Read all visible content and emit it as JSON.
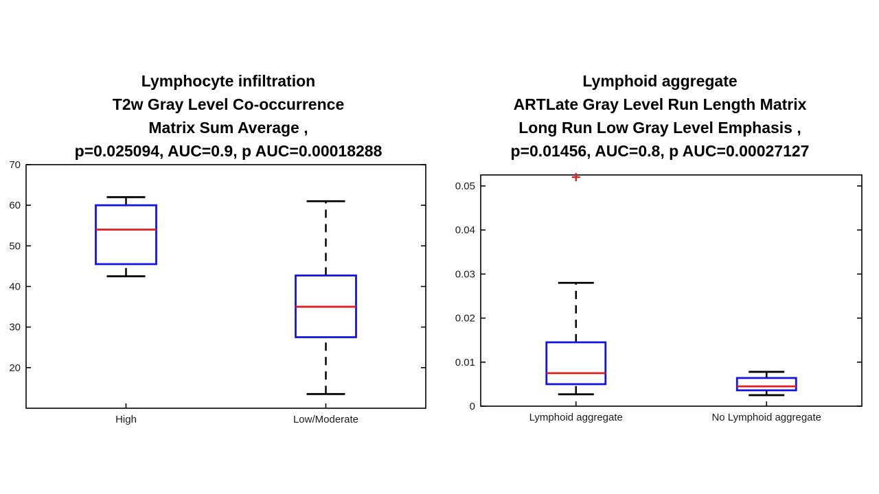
{
  "chart_data": [
    {
      "type": "boxplot",
      "title": "Lymphocyte infiltration\nT2w Gray Level Co-occurrence\nMatrix Sum Average ,\np=0.025094, AUC=0.9, p AUC=0.00018288",
      "p_value": "0.025094",
      "auc": "0.9",
      "p_auc": "0.00018288",
      "categories": [
        "High",
        "Low/Moderate"
      ],
      "ylim": [
        10,
        70
      ],
      "yticks": [
        20,
        30,
        40,
        50,
        60,
        70
      ],
      "ytick_labels": [
        "20",
        "30",
        "40",
        "50",
        "60",
        "70"
      ],
      "series": [
        {
          "name": "High",
          "whisker_low": 42.5,
          "q1": 45.5,
          "median": 54,
          "q3": 60,
          "whisker_high": 62,
          "outliers": []
        },
        {
          "name": "Low/Moderate",
          "whisker_low": 13.5,
          "q1": 27.5,
          "median": 35,
          "q3": 42.7,
          "whisker_high": 61,
          "outliers": []
        }
      ],
      "colors": {
        "box": "#1414E0",
        "median": "#E01F1F",
        "whisker": "#000000",
        "outlier": "#E01F1F",
        "axis": "#000000"
      }
    },
    {
      "type": "boxplot",
      "title": "Lymphoid aggregate\nARTLate Gray Level Run Length Matrix\nLong Run Low Gray Level Emphasis ,\np=0.01456, AUC=0.8, p AUC=0.00027127",
      "p_value": "0.01456",
      "auc": "0.8",
      "p_auc": "0.00027127",
      "categories": [
        "Lymphoid aggregate",
        "No Lymphoid aggregate"
      ],
      "ylim": [
        0,
        0.0525
      ],
      "yticks": [
        0,
        0.01,
        0.02,
        0.03,
        0.04,
        0.05
      ],
      "ytick_labels": [
        "0",
        "0.01",
        "0.02",
        "0.03",
        "0.04",
        "0.05"
      ],
      "series": [
        {
          "name": "Lymphoid aggregate",
          "whisker_low": 0.0027,
          "q1": 0.005,
          "median": 0.0075,
          "q3": 0.0145,
          "whisker_high": 0.028,
          "outliers": [
            0.052
          ]
        },
        {
          "name": "No Lymphoid aggregate",
          "whisker_low": 0.0025,
          "q1": 0.0036,
          "median": 0.0045,
          "q3": 0.0064,
          "whisker_high": 0.0078,
          "outliers": []
        }
      ],
      "colors": {
        "box": "#1414E0",
        "median": "#E01F1F",
        "whisker": "#000000",
        "outlier": "#E01F1F",
        "axis": "#000000"
      }
    }
  ]
}
